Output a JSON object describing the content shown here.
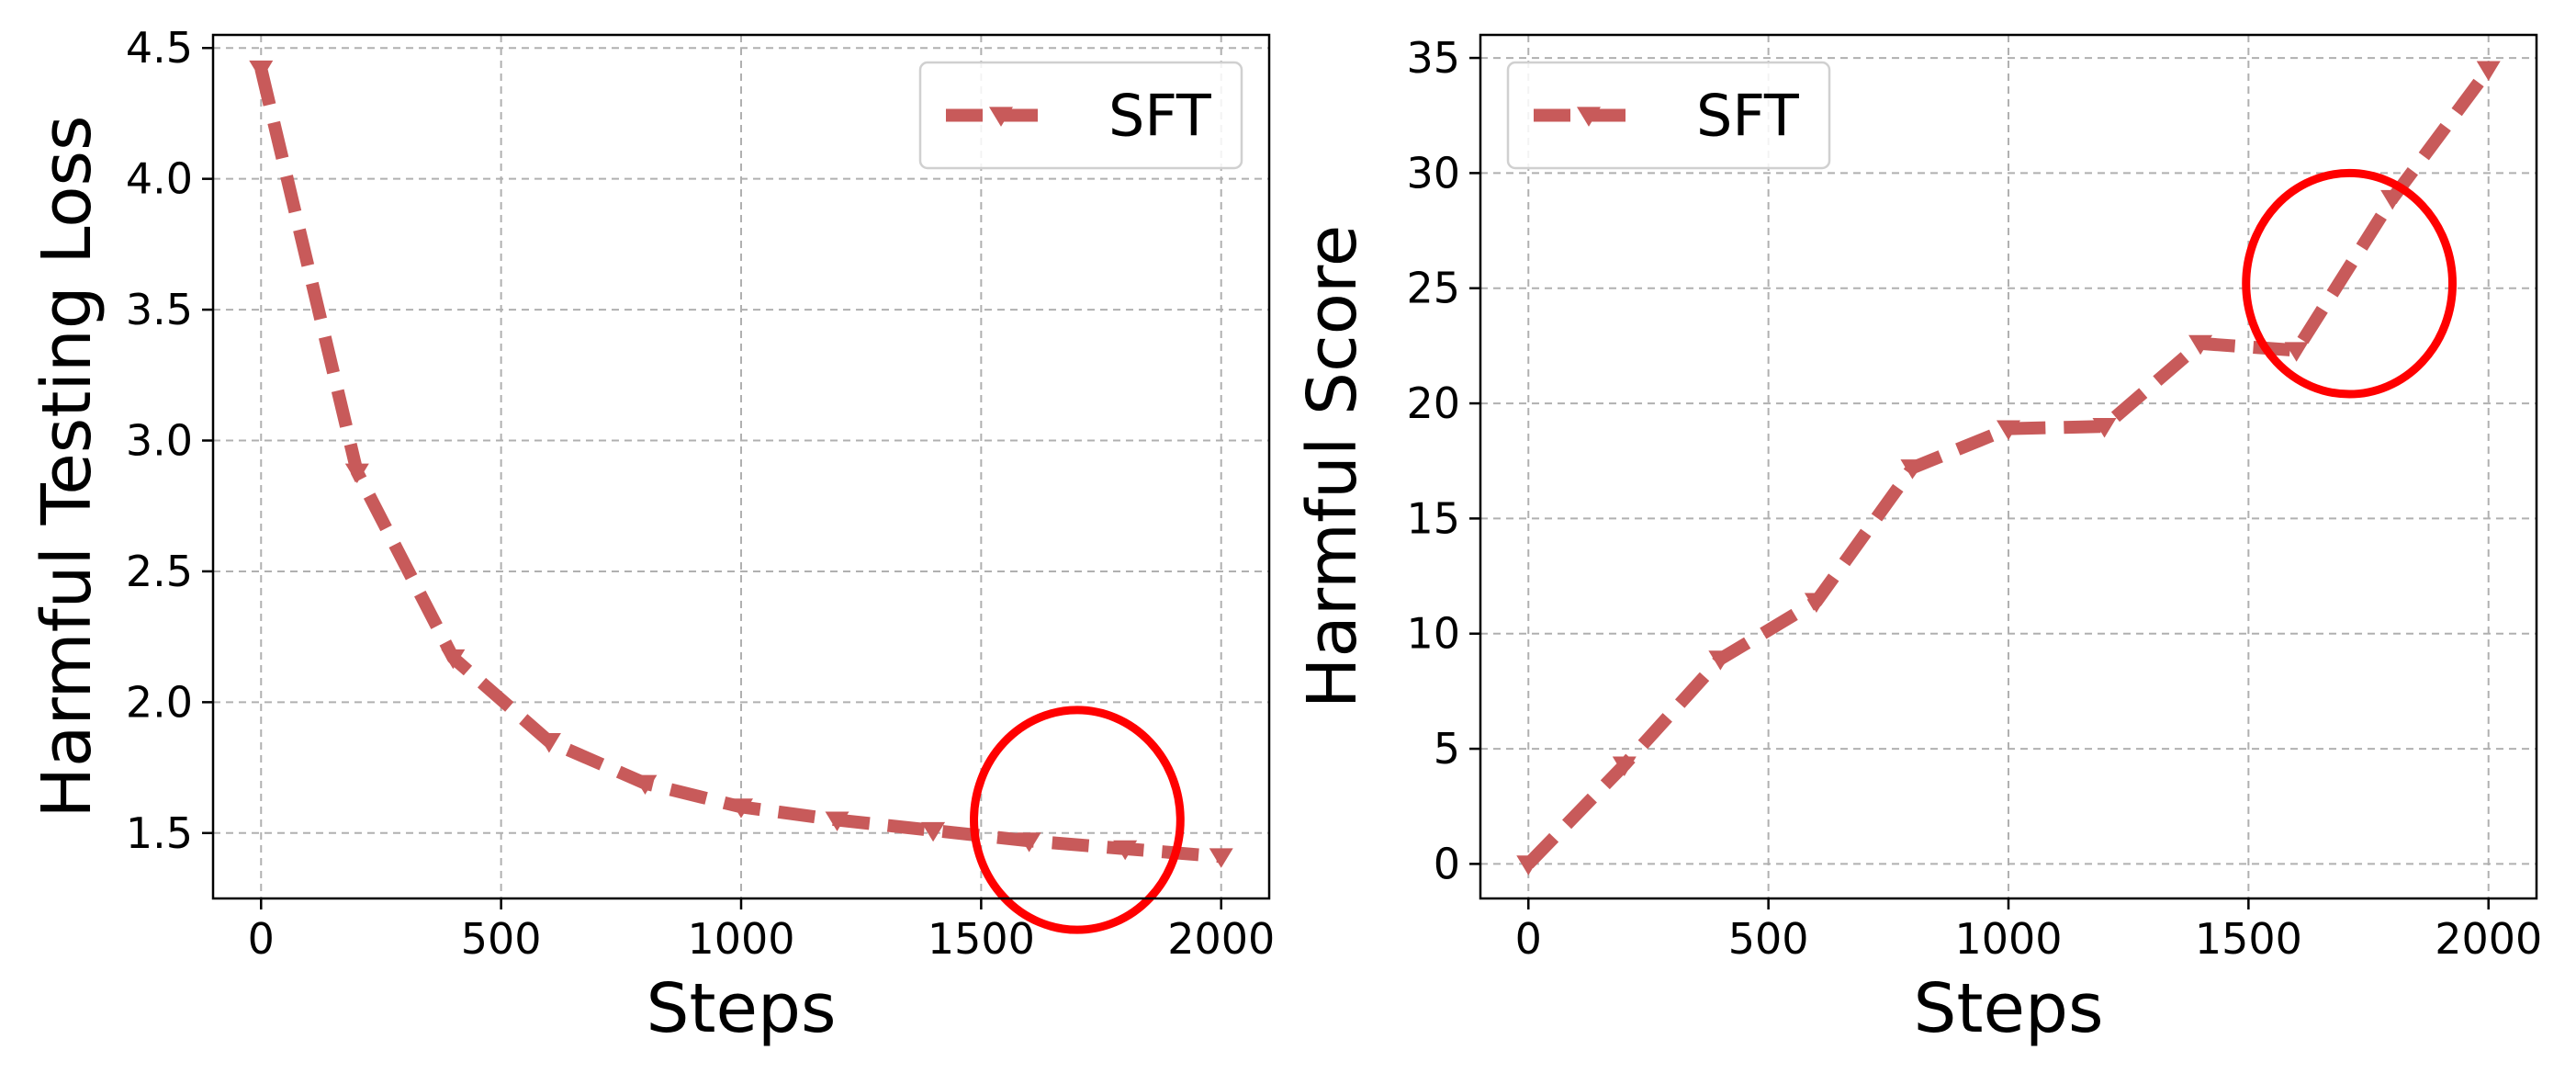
{
  "chart_data": [
    {
      "type": "line",
      "xlabel": "Steps",
      "ylabel": "Harmful Testing Loss",
      "xlim": [
        -100,
        2100
      ],
      "ylim": [
        1.25,
        4.55
      ],
      "xticks": [
        0,
        500,
        1000,
        1500,
        2000
      ],
      "xtick_labels": [
        "0",
        "500",
        "1000",
        "1500",
        "2000"
      ],
      "yticks": [
        1.5,
        2.0,
        2.5,
        3.0,
        3.5,
        4.0,
        4.5
      ],
      "ytick_labels": [
        "1.5",
        "2.0",
        "2.5",
        "3.0",
        "3.5",
        "4.0",
        "4.5"
      ],
      "grid": true,
      "legend": "top-right",
      "series": [
        {
          "name": "SFT",
          "color": "#c85a5a",
          "style": "dashed",
          "marker": "triangle-down",
          "x": [
            0,
            200,
            400,
            600,
            800,
            1000,
            1200,
            1400,
            1600,
            1800,
            2000
          ],
          "y": [
            4.42,
            2.88,
            2.17,
            1.85,
            1.69,
            1.6,
            1.55,
            1.51,
            1.47,
            1.44,
            1.41
          ]
        }
      ],
      "annotations": [
        {
          "type": "circle",
          "color": "#ff0000",
          "cx": 1700,
          "cy": 1.55,
          "rx": 215,
          "ry": 0.42
        }
      ]
    },
    {
      "type": "line",
      "xlabel": "Steps",
      "ylabel": "Harmful Score",
      "xlim": [
        -100,
        2100
      ],
      "ylim": [
        -1.5,
        36
      ],
      "xticks": [
        0,
        500,
        1000,
        1500,
        2000
      ],
      "xtick_labels": [
        "0",
        "500",
        "1000",
        "1500",
        "2000"
      ],
      "yticks": [
        0,
        5,
        10,
        15,
        20,
        25,
        30,
        35
      ],
      "ytick_labels": [
        "0",
        "5",
        "10",
        "15",
        "20",
        "25",
        "30",
        "35"
      ],
      "grid": true,
      "legend": "top-left",
      "series": [
        {
          "name": "SFT",
          "color": "#c85a5a",
          "style": "dashed",
          "marker": "triangle-down",
          "x": [
            0,
            200,
            400,
            600,
            800,
            1000,
            1200,
            1400,
            1600,
            1800,
            2000
          ],
          "y": [
            0.0,
            4.3,
            8.9,
            11.4,
            17.2,
            18.9,
            19.0,
            22.6,
            22.3,
            28.9,
            34.5
          ]
        }
      ],
      "annotations": [
        {
          "type": "circle",
          "color": "#ff0000",
          "cx": 1710,
          "cy": 25.2,
          "rx": 215,
          "ry": 4.8
        }
      ]
    }
  ]
}
